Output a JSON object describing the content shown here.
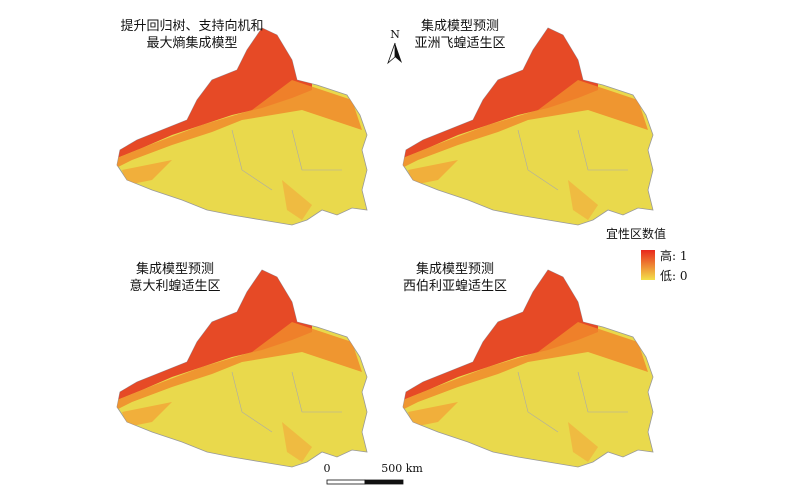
{
  "panels": [
    {
      "title_lines": [
        "提升回归树、支持向机和",
        "最大熵集成模型"
      ]
    },
    {
      "title_lines": [
        "集成模型预测",
        "亚洲飞蝗适生区"
      ]
    },
    {
      "title_lines": [
        "集成模型预测",
        "意大利蝗适生区"
      ]
    },
    {
      "title_lines": [
        "集成模型预测",
        "西伯利亚蝗适生区"
      ]
    }
  ],
  "north_arrow": {
    "label": "N"
  },
  "legend": {
    "title": "宜性区数值",
    "high": "高: 1",
    "low": "低: 0"
  },
  "scale_bar": {
    "start": "0",
    "end": "500 km"
  }
}
